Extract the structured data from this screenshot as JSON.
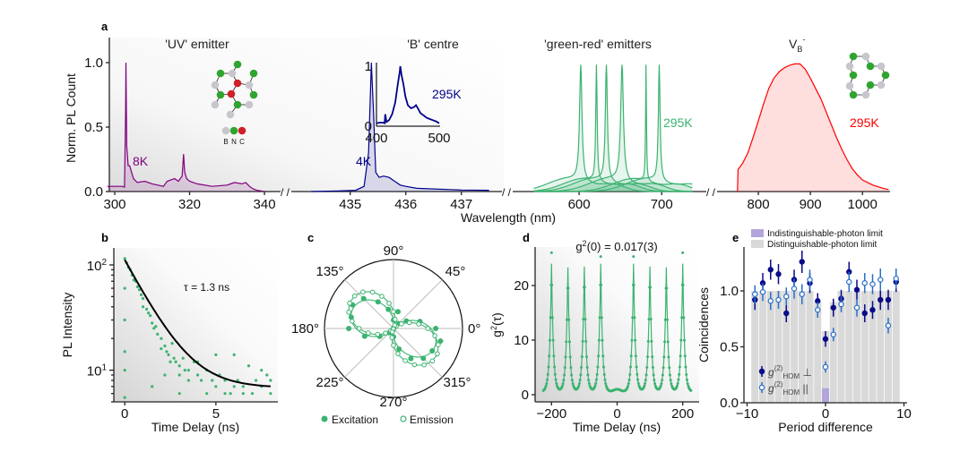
{
  "panel_labels": {
    "a": "a",
    "b": "b",
    "c": "c",
    "d": "d",
    "e": "e"
  },
  "colors": {
    "uv": "#800080",
    "b_centre": "#00008b",
    "green_red": "#3cb371",
    "vb": "#ff0000",
    "e_perp": "#0a0a8a",
    "e_par": "#2a6fc9",
    "indist": "#b3a4dc",
    "dist": "#d9d9d9"
  },
  "chart_data": [
    {
      "id": "a",
      "type": "line",
      "ylabel": "Norm. PL Count",
      "xlabel": "Wavelength (nm)",
      "ylim": [
        0,
        1.1
      ],
      "yticks": [
        "0.0",
        "0.5",
        "1.0"
      ],
      "axis_break": "/ /",
      "segments": [
        {
          "title": "'UV' emitter",
          "temperature": "8K",
          "xlim": [
            298.56,
            344.3
          ],
          "xticks": [
            "300",
            "320",
            "340"
          ],
          "series": [
            {
              "x": [
                298,
                302,
                302.6,
                302.9,
                303.0,
                303.2,
                303.6,
                304,
                305,
                306,
                308,
                310,
                313,
                314,
                316,
                317,
                318,
                318.4,
                318.7,
                319.2,
                320,
                322,
                326,
                330,
                332,
                334,
                335,
                336,
                337,
                338,
                340
              ],
              "y": [
                0.04,
                0.04,
                0.035,
                0.6,
                1.0,
                0.35,
                0.2,
                0.2,
                0.1,
                0.07,
                0.08,
                0.06,
                0.04,
                0.08,
                0.1,
                0.08,
                0.12,
                0.29,
                0.15,
                0.1,
                0.08,
                0.06,
                0.04,
                0.05,
                0.07,
                0.06,
                0.07,
                0.04,
                0.02,
                0.01,
                0
              ]
            }
          ]
        },
        {
          "title": "'B' centre",
          "temperature": "4K",
          "xlim": [
            433.94,
            437.73
          ],
          "xticks": [
            "435",
            "436",
            "437"
          ],
          "series": [
            {
              "x": [
                434.3,
                434.8,
                435.1,
                435.25,
                435.33,
                435.38,
                435.42,
                435.46,
                435.52,
                435.6,
                435.7,
                435.8,
                435.9,
                436.0,
                436.2,
                436.5,
                436.8,
                437.0,
                437.5
              ],
              "y": [
                0,
                0.005,
                0.01,
                0.04,
                0.3,
                1.0,
                0.6,
                0.15,
                0.11,
                0.12,
                0.11,
                0.08,
                0.05,
                0.04,
                0.025,
                0.02,
                0.015,
                0.012,
                0.01
              ]
            }
          ],
          "inset": {
            "temperature": "295K",
            "xlim": [
              400,
              500
            ],
            "ylim": [
              0,
              1
            ],
            "xticks": [
              "400",
              "500"
            ],
            "yticks": [
              "0",
              "1"
            ],
            "x": [
              400,
              405,
              410,
              413,
              414,
              416,
              420,
              425,
              430,
              434,
              437,
              438,
              440,
              443,
              446,
              450,
              455,
              460,
              463,
              466,
              470,
              475,
              480,
              485,
              490,
              495,
              500
            ],
            "y": [
              0.05,
              0.06,
              0.06,
              0.05,
              0.2,
              0.07,
              0.1,
              0.2,
              0.4,
              0.7,
              0.9,
              1.0,
              0.85,
              0.7,
              0.5,
              0.35,
              0.3,
              0.32,
              0.35,
              0.3,
              0.22,
              0.18,
              0.14,
              0.12,
              0.1,
              0.08,
              0.05
            ]
          }
        },
        {
          "title": "'green-red' emitters",
          "temperature": "295K",
          "xlim": [
            519.6,
            754
          ],
          "xticks": [
            "600",
            "700"
          ],
          "data_range": [
            545,
            737
          ],
          "peak_wavelengths": [
            602,
            621,
            633,
            652,
            681,
            697
          ],
          "linewidths_nm": [
            3.5,
            2,
            3,
            4,
            1.2,
            2.5
          ]
        },
        {
          "title": "V",
          "title_sub": "B",
          "title_sup": "-",
          "temperature": "295K",
          "xlim": [
            720.7,
            1053
          ],
          "xticks": [
            "800",
            "900",
            "1000"
          ],
          "series": [
            {
              "x": [
                760,
                761,
                770,
                780,
                790,
                800,
                810,
                820,
                830,
                840,
                850,
                860,
                870,
                880,
                890,
                900,
                910,
                920,
                930,
                940,
                950,
                960,
                970,
                980,
                990,
                1000,
                1020,
                1040,
                1050
              ],
              "y": [
                0,
                0.17,
                0.22,
                0.3,
                0.42,
                0.55,
                0.68,
                0.8,
                0.88,
                0.93,
                0.96,
                0.98,
                0.99,
                0.99,
                0.95,
                0.88,
                0.8,
                0.72,
                0.62,
                0.52,
                0.42,
                0.33,
                0.25,
                0.18,
                0.13,
                0.09,
                0.05,
                0.025,
                0.015
              ]
            }
          ]
        }
      ],
      "legend_atoms": [
        "B",
        "N",
        "C"
      ]
    },
    {
      "id": "b",
      "type": "scatter",
      "xlabel": "Time Delay (ns)",
      "ylabel": "PL Intensity",
      "yscale": "log",
      "xlim": [
        -0.6,
        8.4
      ],
      "ylim": [
        5,
        145
      ],
      "xticks": [
        {
          "v": 0,
          "label": "0"
        },
        {
          "v": 5,
          "label": "5"
        }
      ],
      "yticks": [
        {
          "v": 100,
          "base": "10",
          "exp": "2"
        },
        {
          "v": 10,
          "base": "10",
          "exp": "1"
        }
      ],
      "annotation": "τ = 1.3 ns",
      "fit": {
        "amplitude": 105,
        "tau_ns": 1.3,
        "offset": 6.8
      },
      "points": [
        [
          0,
          115
        ],
        [
          0,
          60
        ],
        [
          0,
          30
        ],
        [
          0,
          15
        ],
        [
          0,
          10
        ],
        [
          0,
          5.5
        ],
        [
          0.1,
          105
        ],
        [
          0.2,
          95
        ],
        [
          0.3,
          90
        ],
        [
          0.4,
          80
        ],
        [
          0.5,
          72
        ],
        [
          0.6,
          70
        ],
        [
          0.8,
          58
        ],
        [
          1.0,
          48
        ],
        [
          1.0,
          40
        ],
        [
          1.2,
          38
        ],
        [
          1.4,
          33
        ],
        [
          1.5,
          28
        ],
        [
          1.6,
          25
        ],
        [
          1.8,
          22
        ],
        [
          2.0,
          20
        ],
        [
          2.0,
          16
        ],
        [
          2.2,
          17
        ],
        [
          2.4,
          14
        ],
        [
          2.5,
          12
        ],
        [
          2.6,
          18
        ],
        [
          2.8,
          12
        ],
        [
          3.0,
          11
        ],
        [
          3.0,
          9
        ],
        [
          3.2,
          13
        ],
        [
          3.5,
          10
        ],
        [
          3.5,
          8
        ],
        [
          3.8,
          12
        ],
        [
          4.0,
          9
        ],
        [
          4.2,
          8
        ],
        [
          4.5,
          10
        ],
        [
          4.8,
          8
        ],
        [
          5.0,
          7
        ],
        [
          5.0,
          14
        ],
        [
          5.2,
          9
        ],
        [
          5.5,
          8
        ],
        [
          5.8,
          6
        ],
        [
          6.0,
          14
        ],
        [
          6.2,
          8
        ],
        [
          6.5,
          7
        ],
        [
          6.8,
          11
        ],
        [
          7.0,
          6
        ],
        [
          7.2,
          8
        ],
        [
          7.5,
          7
        ],
        [
          7.8,
          9
        ],
        [
          8.0,
          6
        ],
        [
          8.0,
          8
        ],
        [
          2.2,
          9
        ],
        [
          1.5,
          7
        ],
        [
          3.0,
          6
        ],
        [
          4.5,
          6
        ],
        [
          6.5,
          6
        ],
        [
          7.5,
          10
        ],
        [
          0.7,
          62
        ],
        [
          0.9,
          52
        ],
        [
          1.3,
          35
        ],
        [
          1.7,
          26
        ],
        [
          2.3,
          15
        ],
        [
          2.7,
          13
        ],
        [
          3.3,
          10
        ],
        [
          4.0,
          12
        ],
        [
          5.5,
          6
        ],
        [
          6.0,
          7
        ]
      ]
    },
    {
      "id": "c",
      "type": "scatter",
      "subtype": "polar",
      "angle_labels": [
        "0°",
        "45°",
        "90°",
        "135°",
        "180°",
        "225°",
        "270°",
        "315°"
      ],
      "legend": [
        "Excitation",
        "Emission"
      ],
      "series": [
        {
          "name": "Excitation",
          "marker": "filled",
          "fit_angle_deg": 155,
          "angles": [
            0,
            15,
            30,
            45,
            60,
            75,
            90,
            105,
            120,
            135,
            150,
            165,
            180,
            195,
            210,
            225,
            240,
            255,
            270,
            285,
            300,
            315,
            330,
            345
          ],
          "r": [
            0.85,
            0.55,
            0.3,
            0.14,
            0.02,
            0.35,
            0.17,
            0.4,
            0.62,
            0.85,
            0.95,
            0.88,
            0.9,
            0.6,
            0.32,
            0.12,
            0.01,
            0.03,
            0.17,
            0.43,
            0.7,
            0.85,
            0.9,
            0.98
          ]
        },
        {
          "name": "Emission",
          "marker": "open",
          "fit_angle_deg": 145,
          "angles": [
            0,
            10,
            20,
            30,
            40,
            50,
            60,
            70,
            80,
            90,
            100,
            110,
            120,
            130,
            140,
            150,
            160,
            170,
            180,
            190,
            200,
            210,
            220,
            230,
            240,
            250,
            260,
            270,
            280,
            290,
            300,
            310,
            320,
            330,
            340,
            350
          ],
          "r": [
            0.67,
            0.5,
            0.33,
            0.18,
            0.07,
            0.01,
            0.01,
            0.07,
            0.18,
            0.33,
            0.5,
            0.67,
            0.82,
            0.93,
            0.99,
            0.99,
            0.93,
            0.82,
            0.67,
            0.5,
            0.33,
            0.18,
            0.07,
            0.01,
            0.01,
            0.07,
            0.18,
            0.33,
            0.5,
            0.67,
            0.82,
            0.93,
            0.99,
            0.99,
            0.93,
            0.82
          ]
        }
      ]
    },
    {
      "id": "d",
      "type": "line",
      "title": "g²(0) = 0.017(3)",
      "title_base": "g",
      "title_sup": "2",
      "title_rest": "(0) = 0.017(3)",
      "xlabel": "Time Delay (ns)",
      "ylabel_base": "g",
      "ylabel_sup": "2",
      "ylabel_rest": "(τ)",
      "xlim": [
        -250,
        250
      ],
      "ylim": [
        -1.3,
        27
      ],
      "xticks": [
        "−200",
        "0",
        "200"
      ],
      "xtick_values": [
        -200,
        0,
        200
      ],
      "yticks": [
        "0",
        "10",
        "20"
      ],
      "ytick_values": [
        0,
        10,
        20
      ],
      "x_range": [
        -225,
        225
      ],
      "peak_centers": [
        -200,
        -150,
        -100,
        -50,
        50,
        100,
        150,
        200
      ],
      "peak_heights": [
        23.5,
        22.8,
        23.0,
        23.5,
        23.5,
        23.0,
        22.8,
        23.5
      ],
      "zero_delay_value": 1.0,
      "baseline": 0.5,
      "outliers": [
        [
          -200,
          26
        ],
        [
          -50,
          25.3
        ],
        [
          50,
          25.3
        ],
        [
          200,
          26
        ]
      ]
    },
    {
      "id": "e",
      "type": "bar",
      "xlabel": "Period difference",
      "ylabel": "Coincidences",
      "xlim": [
        -10.3,
        10.3
      ],
      "ylim": [
        0,
        1.4
      ],
      "xticks": [
        "−10",
        "0",
        "10"
      ],
      "xtick_values": [
        -10,
        0,
        10
      ],
      "yticks": [
        "0.0",
        "0.5",
        "1.0"
      ],
      "ytick_values": [
        0,
        0.5,
        1.0
      ],
      "legend_bars": [
        "Indistinguishable-photon limit",
        "Distinguishable-photon limit"
      ],
      "legend_points": [
        {
          "base": "g",
          "sup": "(2)",
          "sub": "HOM",
          "suffix": " ⊥"
        },
        {
          "base": "g",
          "sup": "(2)",
          "sub": "HOM",
          "suffix": " ||"
        }
      ],
      "x": [
        -9,
        -8,
        -7,
        -6,
        -5,
        -4,
        -3,
        -2,
        -1,
        0,
        1,
        2,
        3,
        4,
        5,
        6,
        7,
        8,
        9
      ],
      "distinguishable_limit": [
        1,
        1,
        1,
        1,
        1,
        1,
        1,
        1,
        0.9,
        0.64,
        0.9,
        1,
        1,
        1,
        1,
        1,
        1,
        1,
        1
      ],
      "indistinguishable_limit": [
        0,
        0,
        0,
        0,
        0,
        0,
        0,
        0,
        0,
        0.13,
        0,
        0,
        0,
        0,
        0,
        0,
        0,
        0,
        0
      ],
      "series": [
        {
          "name": "g(2)HOM ⊥",
          "marker": "filled",
          "values": [
            0.92,
            1.07,
            1.19,
            1.15,
            0.8,
            1.1,
            1.26,
            1.07,
            0.91,
            0.57,
            0.85,
            0.93,
            1.17,
            1.01,
            0.8,
            0.83,
            0.92,
            0.92,
            1.08
          ],
          "errors": [
            0.09,
            0.09,
            0.09,
            0.09,
            0.08,
            0.09,
            0.1,
            0.09,
            0.07,
            0.07,
            0.08,
            0.08,
            0.09,
            0.09,
            0.08,
            0.08,
            0.09,
            0.09,
            0.09
          ]
        },
        {
          "name": "g(2)HOM ||",
          "marker": "open",
          "values": [
            0.97,
            0.99,
            0.91,
            0.92,
            0.95,
            1.02,
            0.97,
            1.1,
            0.83,
            0.32,
            0.61,
            0.88,
            1.08,
            0.85,
            1.07,
            1.06,
            1.1,
            0.69,
            1.11
          ],
          "errors": [
            0.08,
            0.08,
            0.08,
            0.08,
            0.08,
            0.09,
            0.09,
            0.09,
            0.07,
            0.05,
            0.06,
            0.07,
            0.09,
            0.08,
            0.09,
            0.09,
            0.1,
            0.07,
            0.09
          ]
        }
      ]
    }
  ]
}
